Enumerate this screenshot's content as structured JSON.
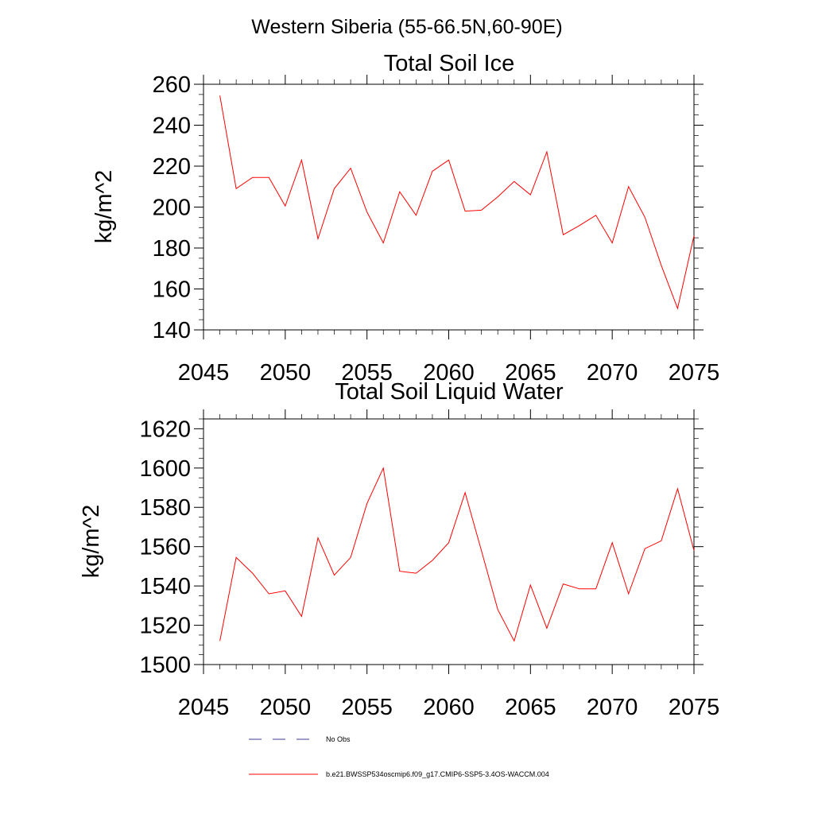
{
  "figure": {
    "title": "Western Siberia (55-66.5N,60-90E)"
  },
  "legend": {
    "items": [
      {
        "label": "No Obs",
        "color": "#3b3b8f",
        "style": "dashed"
      },
      {
        "label": "b.e21.BWSSP534oscmip6.f09_g17.CMIP6-SSP5-3.4OS-WACCM.004",
        "color": "#ff0000",
        "style": "solid"
      }
    ]
  },
  "chart_data": [
    {
      "type": "line",
      "title": "Total Soil Ice",
      "xlabel": "",
      "ylabel": "kg/m^2",
      "xlim": [
        2045,
        2075
      ],
      "ylim": [
        140,
        260
      ],
      "xticks": [
        2045,
        2050,
        2055,
        2060,
        2065,
        2070,
        2075
      ],
      "yticks": [
        140,
        160,
        180,
        200,
        220,
        240,
        260
      ],
      "ytick_minor_step": 5,
      "xtick_minor_step": 1,
      "grid": false,
      "series": [
        {
          "color": "#ff0000",
          "x": [
            2046,
            2047,
            2048,
            2049,
            2050,
            2051,
            2052,
            2053,
            2054,
            2055,
            2056,
            2057,
            2058,
            2059,
            2060,
            2061,
            2062,
            2063,
            2064,
            2065,
            2066,
            2067,
            2068,
            2069,
            2070,
            2071,
            2072,
            2073,
            2074,
            2075
          ],
          "y": [
            254.5,
            209,
            214.5,
            214.5,
            200.5,
            223,
            184.5,
            209,
            219,
            197.5,
            182.5,
            207.5,
            196,
            217.5,
            223,
            198,
            198.5,
            205,
            212.5,
            206,
            227,
            186.5,
            191,
            196,
            182.5,
            210,
            195,
            171.5,
            150.5,
            186
          ]
        }
      ]
    },
    {
      "type": "line",
      "title": "Total Soil Liquid Water",
      "xlabel": "",
      "ylabel": "kg/m^2",
      "xlim": [
        2045,
        2075
      ],
      "ylim": [
        1500,
        1625
      ],
      "xticks": [
        2045,
        2050,
        2055,
        2060,
        2065,
        2070,
        2075
      ],
      "yticks": [
        1500,
        1520,
        1540,
        1560,
        1580,
        1600,
        1620
      ],
      "ytick_minor_step": 5,
      "xtick_minor_step": 1,
      "grid": false,
      "series": [
        {
          "color": "#ff0000",
          "x": [
            2046,
            2047,
            2048,
            2049,
            2050,
            2051,
            2052,
            2053,
            2054,
            2055,
            2056,
            2057,
            2058,
            2059,
            2060,
            2061,
            2062,
            2063,
            2064,
            2065,
            2066,
            2067,
            2068,
            2069,
            2070,
            2071,
            2072,
            2073,
            2074,
            2075
          ],
          "y": [
            1512,
            1554.5,
            1546.5,
            1536,
            1537.5,
            1524.5,
            1564.5,
            1545.5,
            1554.5,
            1582,
            1600,
            1547.5,
            1546.5,
            1553,
            1562,
            1587.5,
            1558,
            1528,
            1512,
            1540.5,
            1518.5,
            1541,
            1538.5,
            1538.5,
            1562,
            1536,
            1559,
            1563,
            1589.5,
            1558
          ]
        }
      ]
    }
  ]
}
